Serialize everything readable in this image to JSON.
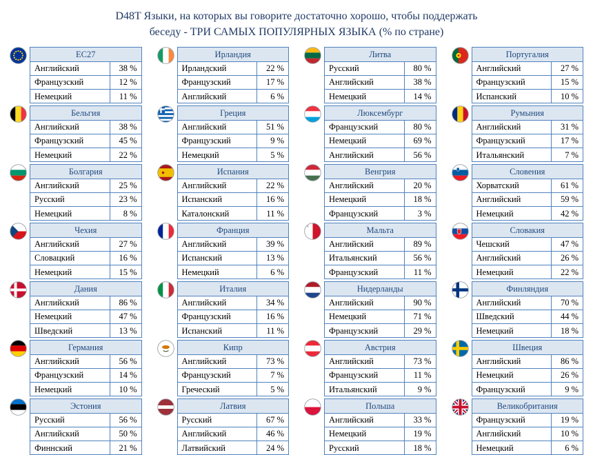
{
  "title": {
    "line1": "D48T Языки, на которых вы говорите достаточно хорошо, чтобы поддержать",
    "line2": "беседу - ТРИ САМЫХ ПОПУЛЯРНЫХ ЯЗЫКА (% по стране)"
  },
  "colors": {
    "title_text": "#1F3864",
    "header_bg": "#DCE6F1",
    "header_text": "#1F497D",
    "border": "#4F81BD",
    "row_text": "#000000"
  },
  "chart_data": {
    "type": "table",
    "title": "D48T Языки, на которых вы говорите достаточно хорошо, чтобы поддержать беседу - ТРИ САМЫХ ПОПУЛЯРНЫХ ЯЗЫКА (% по стране)",
    "layout": {
      "columns": 4,
      "rows_per_column": 7,
      "order": "column-major",
      "grid": "off",
      "legend": "none"
    },
    "countries": [
      {
        "flag": "eu",
        "name": "ЕС27",
        "languages": [
          {
            "lang": "Английский",
            "value": 38,
            "label": "38 %"
          },
          {
            "lang": "Французский",
            "value": 12,
            "label": "12 %"
          },
          {
            "lang": "Немецкий",
            "value": 11,
            "label": "11 %"
          }
        ]
      },
      {
        "flag": "be",
        "name": "Бельгия",
        "languages": [
          {
            "lang": "Английский",
            "value": 38,
            "label": "38 %"
          },
          {
            "lang": "Французский",
            "value": 45,
            "label": "45 %"
          },
          {
            "lang": "Немецкий",
            "value": 22,
            "label": "22 %"
          }
        ]
      },
      {
        "flag": "bg",
        "name": "Болгария",
        "languages": [
          {
            "lang": "Английский",
            "value": 25,
            "label": "25 %"
          },
          {
            "lang": "Русский",
            "value": 23,
            "label": "23 %"
          },
          {
            "lang": "Немецкий",
            "value": 8,
            "label": "8 %"
          }
        ]
      },
      {
        "flag": "cz",
        "name": "Чехия",
        "languages": [
          {
            "lang": "Английский",
            "value": 27,
            "label": "27 %"
          },
          {
            "lang": "Словацкий",
            "value": 16,
            "label": "16 %"
          },
          {
            "lang": "Немецкий",
            "value": 15,
            "label": "15 %"
          }
        ]
      },
      {
        "flag": "dk",
        "name": "Дания",
        "languages": [
          {
            "lang": "Английский",
            "value": 86,
            "label": "86 %"
          },
          {
            "lang": "Немецкий",
            "value": 47,
            "label": "47 %"
          },
          {
            "lang": "Шведский",
            "value": 13,
            "label": "13 %"
          }
        ]
      },
      {
        "flag": "de",
        "name": "Германия",
        "languages": [
          {
            "lang": "Английский",
            "value": 56,
            "label": "56 %"
          },
          {
            "lang": "Французский",
            "value": 14,
            "label": "14 %"
          },
          {
            "lang": "Немецкий",
            "value": 10,
            "label": "10 %"
          }
        ]
      },
      {
        "flag": "ee",
        "name": "Эстония",
        "languages": [
          {
            "lang": "Русский",
            "value": 56,
            "label": "56 %"
          },
          {
            "lang": "Английский",
            "value": 50,
            "label": "50 %"
          },
          {
            "lang": "Финнский",
            "value": 21,
            "label": "21 %"
          }
        ]
      },
      {
        "flag": "ie",
        "name": "Ирландия",
        "languages": [
          {
            "lang": "Ирландский",
            "value": 22,
            "label": "22 %"
          },
          {
            "lang": "Французский",
            "value": 17,
            "label": "17 %"
          },
          {
            "lang": "Английский",
            "value": 6,
            "label": "6 %"
          }
        ]
      },
      {
        "flag": "gr",
        "name": "Греция",
        "languages": [
          {
            "lang": "Английский",
            "value": 51,
            "label": "51 %"
          },
          {
            "lang": "Французский",
            "value": 9,
            "label": "9 %"
          },
          {
            "lang": "Немецкий",
            "value": 5,
            "label": "5 %"
          }
        ]
      },
      {
        "flag": "es",
        "name": "Испания",
        "languages": [
          {
            "lang": "Английский",
            "value": 22,
            "label": "22 %"
          },
          {
            "lang": "Испанский",
            "value": 16,
            "label": "16 %"
          },
          {
            "lang": "Каталонский",
            "value": 11,
            "label": "11 %"
          }
        ]
      },
      {
        "flag": "fr",
        "name": "Франция",
        "languages": [
          {
            "lang": "Английский",
            "value": 39,
            "label": "39 %"
          },
          {
            "lang": "Испанский",
            "value": 13,
            "label": "13 %"
          },
          {
            "lang": "Немецкий",
            "value": 6,
            "label": "6 %"
          }
        ]
      },
      {
        "flag": "it",
        "name": "Италия",
        "languages": [
          {
            "lang": "Английский",
            "value": 34,
            "label": "34 %"
          },
          {
            "lang": "Французский",
            "value": 16,
            "label": "16 %"
          },
          {
            "lang": "Испанский",
            "value": 11,
            "label": "11 %"
          }
        ]
      },
      {
        "flag": "cy",
        "name": "Кипр",
        "languages": [
          {
            "lang": "Английский",
            "value": 73,
            "label": "73 %"
          },
          {
            "lang": "Французский",
            "value": 7,
            "label": "7 %"
          },
          {
            "lang": "Греческий",
            "value": 5,
            "label": "5 %"
          }
        ]
      },
      {
        "flag": "lv",
        "name": "Латвия",
        "languages": [
          {
            "lang": "Русский",
            "value": 67,
            "label": "67 %"
          },
          {
            "lang": "Английский",
            "value": 46,
            "label": "46 %"
          },
          {
            "lang": "Латвийский",
            "value": 24,
            "label": "24 %"
          }
        ]
      },
      {
        "flag": "lt",
        "name": "Литва",
        "languages": [
          {
            "lang": "Русский",
            "value": 80,
            "label": "80 %"
          },
          {
            "lang": "Английский",
            "value": 38,
            "label": "38 %"
          },
          {
            "lang": "Немецкий",
            "value": 14,
            "label": "14 %"
          }
        ]
      },
      {
        "flag": "lu",
        "name": "Люксембург",
        "languages": [
          {
            "lang": "Французский",
            "value": 80,
            "label": "80 %"
          },
          {
            "lang": "Немецкий",
            "value": 69,
            "label": "69 %"
          },
          {
            "lang": "Английский",
            "value": 56,
            "label": "56 %"
          }
        ]
      },
      {
        "flag": "hu",
        "name": "Венгрия",
        "languages": [
          {
            "lang": "Английский",
            "value": 20,
            "label": "20 %"
          },
          {
            "lang": "Немецкий",
            "value": 18,
            "label": "18 %"
          },
          {
            "lang": "Французский",
            "value": 3,
            "label": "3 %"
          }
        ]
      },
      {
        "flag": "mt",
        "name": "Мальта",
        "languages": [
          {
            "lang": "Английский",
            "value": 89,
            "label": "89 %"
          },
          {
            "lang": "Итальянский",
            "value": 56,
            "label": "56 %"
          },
          {
            "lang": "Французский",
            "value": 11,
            "label": "11 %"
          }
        ]
      },
      {
        "flag": "nl",
        "name": "Нидерланды",
        "languages": [
          {
            "lang": "Английский",
            "value": 90,
            "label": "90 %"
          },
          {
            "lang": "Немецкий",
            "value": 71,
            "label": "71 %"
          },
          {
            "lang": "Французский",
            "value": 29,
            "label": "29 %"
          }
        ]
      },
      {
        "flag": "at",
        "name": "Австрия",
        "languages": [
          {
            "lang": "Английский",
            "value": 73,
            "label": "73 %"
          },
          {
            "lang": "Французский",
            "value": 11,
            "label": "11 %"
          },
          {
            "lang": "Итальянский",
            "value": 9,
            "label": "9 %"
          }
        ]
      },
      {
        "flag": "pl",
        "name": "Польша",
        "languages": [
          {
            "lang": "Английский",
            "value": 33,
            "label": "33 %"
          },
          {
            "lang": "Немецкий",
            "value": 19,
            "label": "19 %"
          },
          {
            "lang": "Русский",
            "value": 18,
            "label": "18 %"
          }
        ]
      },
      {
        "flag": "pt",
        "name": "Португалия",
        "languages": [
          {
            "lang": "Английский",
            "value": 27,
            "label": "27 %"
          },
          {
            "lang": "Французский",
            "value": 15,
            "label": "15 %"
          },
          {
            "lang": "Испанский",
            "value": 10,
            "label": "10 %"
          }
        ]
      },
      {
        "flag": "ro",
        "name": "Румыния",
        "languages": [
          {
            "lang": "Английский",
            "value": 31,
            "label": "31 %"
          },
          {
            "lang": "Французский",
            "value": 17,
            "label": "17 %"
          },
          {
            "lang": "Итальянский",
            "value": 7,
            "label": "7 %"
          }
        ]
      },
      {
        "flag": "si",
        "name": "Словения",
        "languages": [
          {
            "lang": "Хорватский",
            "value": 61,
            "label": "61 %"
          },
          {
            "lang": "Английский",
            "value": 59,
            "label": "59 %"
          },
          {
            "lang": "Немецкий",
            "value": 42,
            "label": "42 %"
          }
        ]
      },
      {
        "flag": "sk",
        "name": "Словакия",
        "languages": [
          {
            "lang": "Чешский",
            "value": 47,
            "label": "47 %"
          },
          {
            "lang": "Английский",
            "value": 26,
            "label": "26 %"
          },
          {
            "lang": "Немецкий",
            "value": 22,
            "label": "22 %"
          }
        ]
      },
      {
        "flag": "fi",
        "name": "Финляндия",
        "languages": [
          {
            "lang": "Английский",
            "value": 70,
            "label": "70 %"
          },
          {
            "lang": "Шведский",
            "value": 44,
            "label": "44 %"
          },
          {
            "lang": "Немецкий",
            "value": 18,
            "label": "18 %"
          }
        ]
      },
      {
        "flag": "se",
        "name": "Швеция",
        "languages": [
          {
            "lang": "Английский",
            "value": 86,
            "label": "86 %"
          },
          {
            "lang": "Немецкий",
            "value": 26,
            "label": "26 %"
          },
          {
            "lang": "Французский",
            "value": 9,
            "label": "9 %"
          }
        ]
      },
      {
        "flag": "gb",
        "name": "Великобритания",
        "languages": [
          {
            "lang": "Французский",
            "value": 19,
            "label": "19 %"
          },
          {
            "lang": "Английский",
            "value": 10,
            "label": "10 %"
          },
          {
            "lang": "Немецкий",
            "value": 6,
            "label": "6 %"
          }
        ]
      }
    ]
  }
}
